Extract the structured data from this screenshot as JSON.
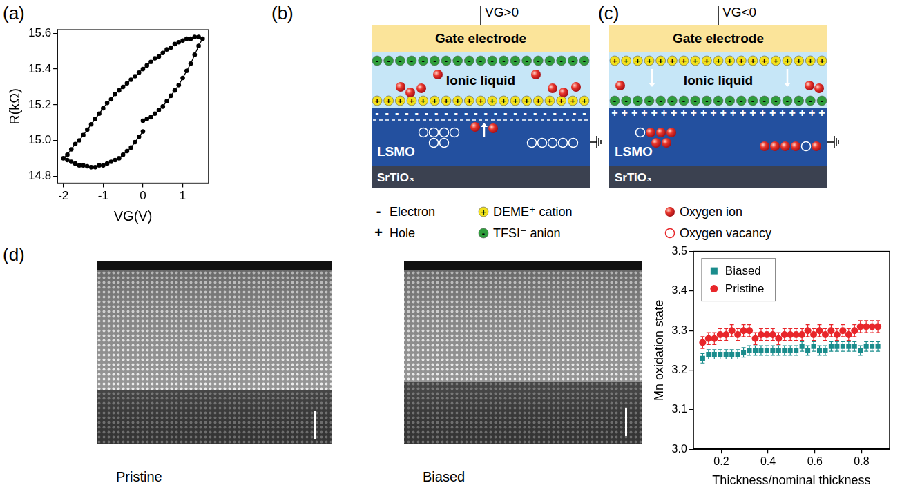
{
  "chart_data": [
    {
      "type": "line",
      "xlabel": "VG(V)",
      "ylabel": "R(kΩ)",
      "x": [
        0,
        0.1,
        0.2,
        0.3,
        0.4,
        0.5,
        0.6,
        0.7,
        0.8,
        0.9,
        1.0,
        1.1,
        1.2,
        1.3,
        1.4,
        1.5,
        1.4,
        1.3,
        1.2,
        1.1,
        1.0,
        0.9,
        0.8,
        0.7,
        0.6,
        0.5,
        0.4,
        0.3,
        0.2,
        0.1,
        0,
        -0.1,
        -0.2,
        -0.3,
        -0.4,
        -0.5,
        -0.6,
        -0.7,
        -0.8,
        -0.9,
        -1.0,
        -1.1,
        -1.2,
        -1.3,
        -1.4,
        -1.5,
        -1.6,
        -1.7,
        -1.8,
        -1.9,
        -2.0,
        -1.9,
        -1.8,
        -1.7,
        -1.6,
        -1.5,
        -1.4,
        -1.3,
        -1.2,
        -1.1,
        -1.0,
        -0.9,
        -0.8,
        -0.7,
        -0.6,
        -0.5,
        -0.4,
        -0.3,
        -0.2,
        -0.1,
        0
      ],
      "values": [
        15.11,
        15.12,
        15.13,
        15.15,
        15.17,
        15.19,
        15.22,
        15.25,
        15.28,
        15.31,
        15.35,
        15.39,
        15.43,
        15.48,
        15.53,
        15.57,
        15.58,
        15.58,
        15.57,
        15.57,
        15.56,
        15.55,
        15.54,
        15.52,
        15.51,
        15.49,
        15.47,
        15.46,
        15.44,
        15.42,
        15.4,
        15.38,
        15.36,
        15.34,
        15.32,
        15.3,
        15.28,
        15.26,
        15.23,
        15.21,
        15.18,
        15.15,
        15.12,
        15.09,
        15.06,
        15.03,
        15.0,
        14.98,
        14.95,
        14.92,
        14.9,
        14.89,
        14.88,
        14.87,
        14.86,
        14.86,
        14.855,
        14.85,
        14.85,
        14.86,
        14.86,
        14.87,
        14.88,
        14.89,
        14.9,
        14.92,
        14.94,
        14.96,
        14.99,
        15.02,
        15.05
      ],
      "color": "#000000",
      "marker": "circle",
      "xlim": [
        -2.15,
        1.65
      ],
      "ylim": [
        14.76,
        15.62
      ],
      "xticks": [
        -2,
        -1,
        0,
        1
      ],
      "yticks": [
        14.8,
        {
          "value": 15,
          "label": "15.0"
        },
        15.2,
        15.4,
        15.6
      ],
      "grid": false
    },
    {
      "type": "scatter",
      "xlabel": "Thickness/nominal thickness",
      "ylabel": "Mn oxidation state",
      "x": [
        0.12,
        0.145,
        0.17,
        0.195,
        0.22,
        0.245,
        0.27,
        0.295,
        0.32,
        0.345,
        0.37,
        0.395,
        0.42,
        0.445,
        0.47,
        0.495,
        0.52,
        0.545,
        0.57,
        0.595,
        0.62,
        0.645,
        0.67,
        0.695,
        0.72,
        0.745,
        0.77,
        0.795,
        0.82,
        0.845,
        0.87
      ],
      "series": [
        {
          "name": "Biased",
          "color": "#1a8c8c",
          "marker": "square",
          "values": [
            3.23,
            3.24,
            3.24,
            3.24,
            3.24,
            3.24,
            3.24,
            3.245,
            3.25,
            3.25,
            3.25,
            3.25,
            3.25,
            3.25,
            3.25,
            3.25,
            3.25,
            3.26,
            3.25,
            3.26,
            3.25,
            3.25,
            3.26,
            3.26,
            3.26,
            3.26,
            3.26,
            3.25,
            3.26,
            3.26,
            3.26
          ],
          "errors": [
            0.012,
            0.012,
            0.012,
            0.012,
            0.012,
            0.012,
            0.012,
            0.012,
            0.012,
            0.012,
            0.012,
            0.012,
            0.012,
            0.012,
            0.012,
            0.012,
            0.012,
            0.012,
            0.012,
            0.012,
            0.012,
            0.012,
            0.012,
            0.012,
            0.012,
            0.012,
            0.012,
            0.012,
            0.012,
            0.012,
            0.012
          ]
        },
        {
          "name": "Pristine",
          "color": "#e8262a",
          "marker": "circle",
          "values": [
            3.27,
            3.28,
            3.28,
            3.29,
            3.29,
            3.3,
            3.29,
            3.3,
            3.3,
            3.28,
            3.29,
            3.29,
            3.29,
            3.28,
            3.29,
            3.29,
            3.29,
            3.29,
            3.3,
            3.29,
            3.3,
            3.29,
            3.3,
            3.29,
            3.3,
            3.29,
            3.3,
            3.31,
            3.31,
            3.31,
            3.31
          ],
          "errors": [
            0.015,
            0.015,
            0.015,
            0.015,
            0.015,
            0.015,
            0.015,
            0.015,
            0.015,
            0.015,
            0.015,
            0.015,
            0.015,
            0.015,
            0.015,
            0.015,
            0.015,
            0.015,
            0.015,
            0.015,
            0.015,
            0.015,
            0.015,
            0.015,
            0.015,
            0.015,
            0.015,
            0.015,
            0.015,
            0.015,
            0.015
          ]
        }
      ],
      "xlim": [
        0.08,
        0.92
      ],
      "ylim": [
        3.0,
        3.5
      ],
      "xticks": [
        0.2,
        0.4,
        0.6,
        0.8
      ],
      "yticks": [
        {
          "value": 3,
          "label": "3.0"
        },
        3.1,
        3.2,
        3.3,
        3.4,
        3.5
      ],
      "legend": "upper left",
      "grid": false
    }
  ],
  "panel_labels": [
    "(a)",
    "(b)",
    "(c)",
    "(d)"
  ],
  "diagrams": [
    {
      "bias": "VG>0",
      "gate": "Gate electrode",
      "liquid": "Ionic liquid",
      "film": "LSMO",
      "substrate": "SrTiO₃"
    },
    {
      "bias": "VG<0",
      "gate": "Gate electrode",
      "liquid": "Ionic liquid",
      "film": "LSMO",
      "substrate": "SrTiO₃"
    }
  ],
  "diagram_legend": [
    {
      "symbol": "-",
      "label": "Electron"
    },
    {
      "symbol": "+",
      "label": "Hole"
    },
    {
      "symbol": "+",
      "label": "DEME⁺ cation"
    },
    {
      "symbol": "-",
      "label": "TFSI⁻ anion"
    },
    {
      "label": "Oxygen ion"
    },
    {
      "label": "Oxygen vacancy"
    }
  ],
  "images": [
    {
      "caption": "Pristine"
    },
    {
      "caption": "Biased"
    }
  ]
}
